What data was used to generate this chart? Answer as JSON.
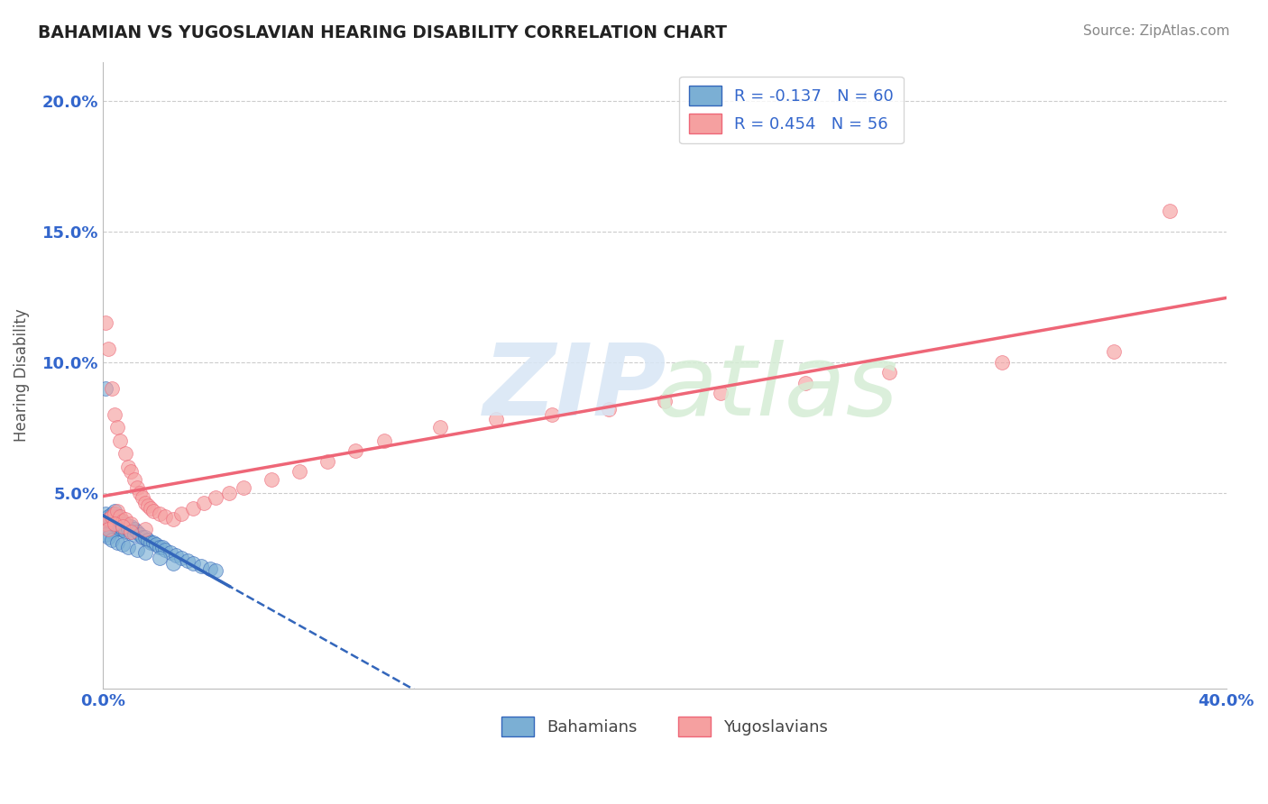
{
  "title": "BAHAMIAN VS YUGOSLAVIAN HEARING DISABILITY CORRELATION CHART",
  "source": "Source: ZipAtlas.com",
  "ylabel": "Hearing Disability",
  "xmin": 0.0,
  "xmax": 0.4,
  "ymin": -0.025,
  "ymax": 0.215,
  "bahamian_R": -0.137,
  "bahamian_N": 60,
  "yugoslavian_R": 0.454,
  "yugoslavian_N": 56,
  "blue_color": "#7BAFD4",
  "pink_color": "#F5A0A0",
  "blue_line_color": "#3366BB",
  "pink_line_color": "#EE6677",
  "bahamian_x": [
    0.001,
    0.001,
    0.001,
    0.002,
    0.002,
    0.002,
    0.002,
    0.003,
    0.003,
    0.003,
    0.003,
    0.004,
    0.004,
    0.004,
    0.005,
    0.005,
    0.005,
    0.006,
    0.006,
    0.006,
    0.007,
    0.007,
    0.008,
    0.008,
    0.008,
    0.009,
    0.009,
    0.01,
    0.01,
    0.011,
    0.011,
    0.012,
    0.013,
    0.014,
    0.015,
    0.016,
    0.017,
    0.018,
    0.019,
    0.02,
    0.021,
    0.022,
    0.024,
    0.026,
    0.028,
    0.03,
    0.032,
    0.035,
    0.038,
    0.04,
    0.001,
    0.002,
    0.003,
    0.005,
    0.007,
    0.009,
    0.012,
    0.015,
    0.02,
    0.025
  ],
  "bahamian_y": [
    0.038,
    0.042,
    0.09,
    0.04,
    0.038,
    0.041,
    0.036,
    0.039,
    0.037,
    0.042,
    0.035,
    0.04,
    0.038,
    0.043,
    0.038,
    0.036,
    0.041,
    0.038,
    0.037,
    0.039,
    0.037,
    0.036,
    0.038,
    0.036,
    0.035,
    0.037,
    0.036,
    0.037,
    0.035,
    0.036,
    0.034,
    0.035,
    0.034,
    0.033,
    0.033,
    0.032,
    0.031,
    0.031,
    0.03,
    0.029,
    0.029,
    0.028,
    0.027,
    0.026,
    0.025,
    0.024,
    0.023,
    0.022,
    0.021,
    0.02,
    0.034,
    0.033,
    0.032,
    0.031,
    0.03,
    0.029,
    0.028,
    0.027,
    0.025,
    0.023
  ],
  "yugoslavian_x": [
    0.001,
    0.001,
    0.002,
    0.002,
    0.003,
    0.003,
    0.004,
    0.004,
    0.005,
    0.005,
    0.006,
    0.006,
    0.007,
    0.008,
    0.008,
    0.009,
    0.01,
    0.01,
    0.011,
    0.012,
    0.013,
    0.014,
    0.015,
    0.016,
    0.017,
    0.018,
    0.02,
    0.022,
    0.025,
    0.028,
    0.032,
    0.036,
    0.04,
    0.045,
    0.05,
    0.06,
    0.07,
    0.08,
    0.09,
    0.1,
    0.12,
    0.14,
    0.16,
    0.18,
    0.2,
    0.22,
    0.25,
    0.28,
    0.32,
    0.36,
    0.002,
    0.004,
    0.007,
    0.01,
    0.015,
    0.38
  ],
  "yugoslavian_y": [
    0.038,
    0.115,
    0.04,
    0.105,
    0.041,
    0.09,
    0.042,
    0.08,
    0.043,
    0.075,
    0.041,
    0.07,
    0.039,
    0.065,
    0.04,
    0.06,
    0.038,
    0.058,
    0.055,
    0.052,
    0.05,
    0.048,
    0.046,
    0.045,
    0.044,
    0.043,
    0.042,
    0.041,
    0.04,
    0.042,
    0.044,
    0.046,
    0.048,
    0.05,
    0.052,
    0.055,
    0.058,
    0.062,
    0.066,
    0.07,
    0.075,
    0.078,
    0.08,
    0.082,
    0.085,
    0.088,
    0.092,
    0.096,
    0.1,
    0.104,
    0.036,
    0.038,
    0.037,
    0.035,
    0.036,
    0.158
  ]
}
